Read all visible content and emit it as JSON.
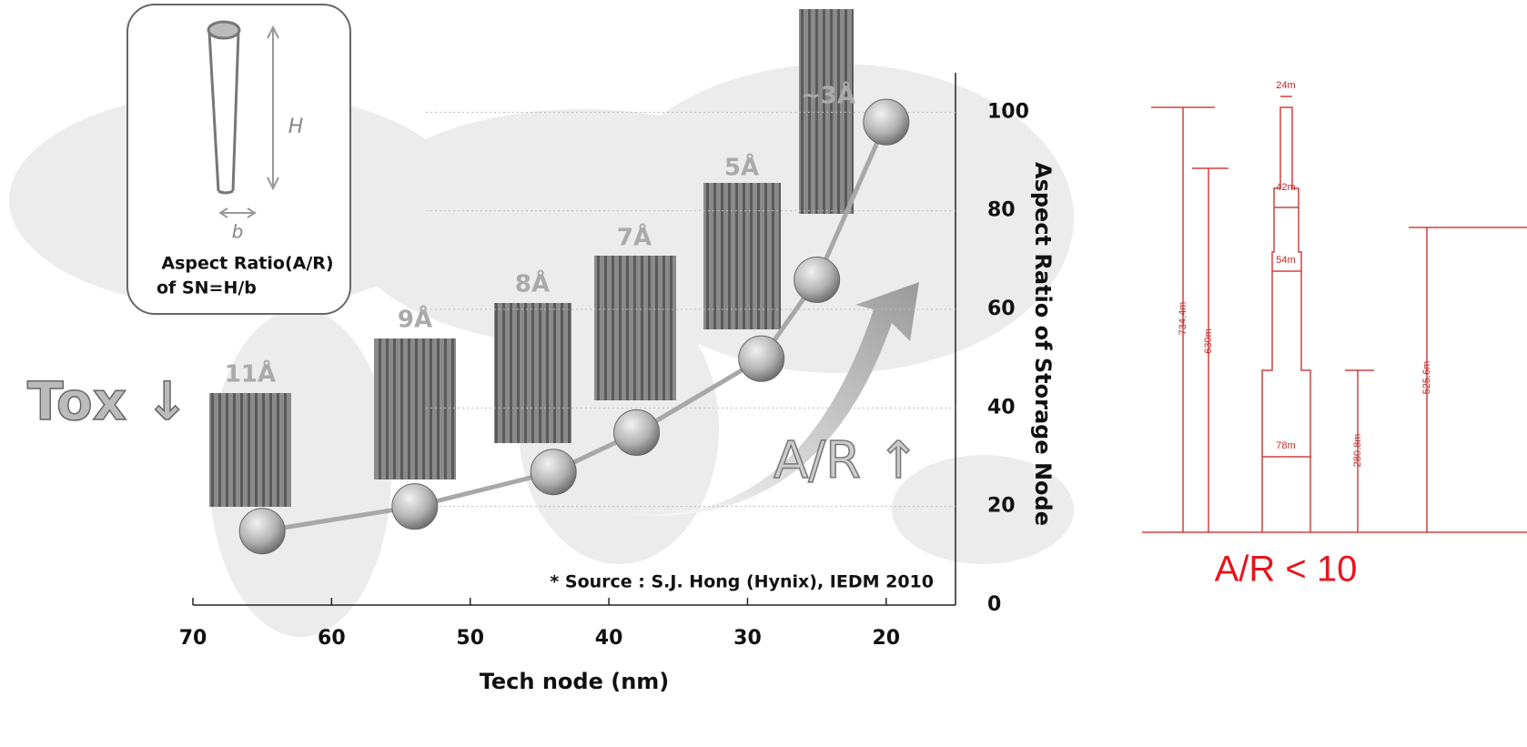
{
  "chart_data": {
    "type": "line",
    "xlabel": "Tech node (nm)",
    "ylabel": "Aspect Ratio of Storage Node",
    "x": [
      65,
      54,
      44,
      38,
      29,
      25,
      20
    ],
    "values": [
      15,
      20,
      27,
      35,
      50,
      66,
      98
    ],
    "color": "#a8a8a8",
    "xlim": [
      70,
      15
    ],
    "xticks": [
      70,
      60,
      50,
      40,
      30,
      20
    ],
    "ylim": [
      0,
      108
    ],
    "yticks": [
      0,
      20,
      40,
      60,
      80,
      100
    ],
    "grid": true,
    "image_labels": [
      "11Å",
      "9Å",
      "8Å",
      "7Å",
      "5Å",
      "~3Å"
    ],
    "annotations": [
      "Tox ↓",
      "A/R ↑",
      "* Source : S.J. Hong (Hynix), IEDM 2010"
    ]
  },
  "inset": {
    "height_label": "H",
    "base_label": "b",
    "caption": [
      "Aspect Ratio(A/R)",
      "of SN=H/b"
    ]
  },
  "diagram": {
    "widths": [
      "24m",
      "42m",
      "54m",
      "78m"
    ],
    "heights": [
      "734.4m",
      "630m",
      "280.8m",
      "525.6m"
    ],
    "caption": "A/R < 10"
  }
}
